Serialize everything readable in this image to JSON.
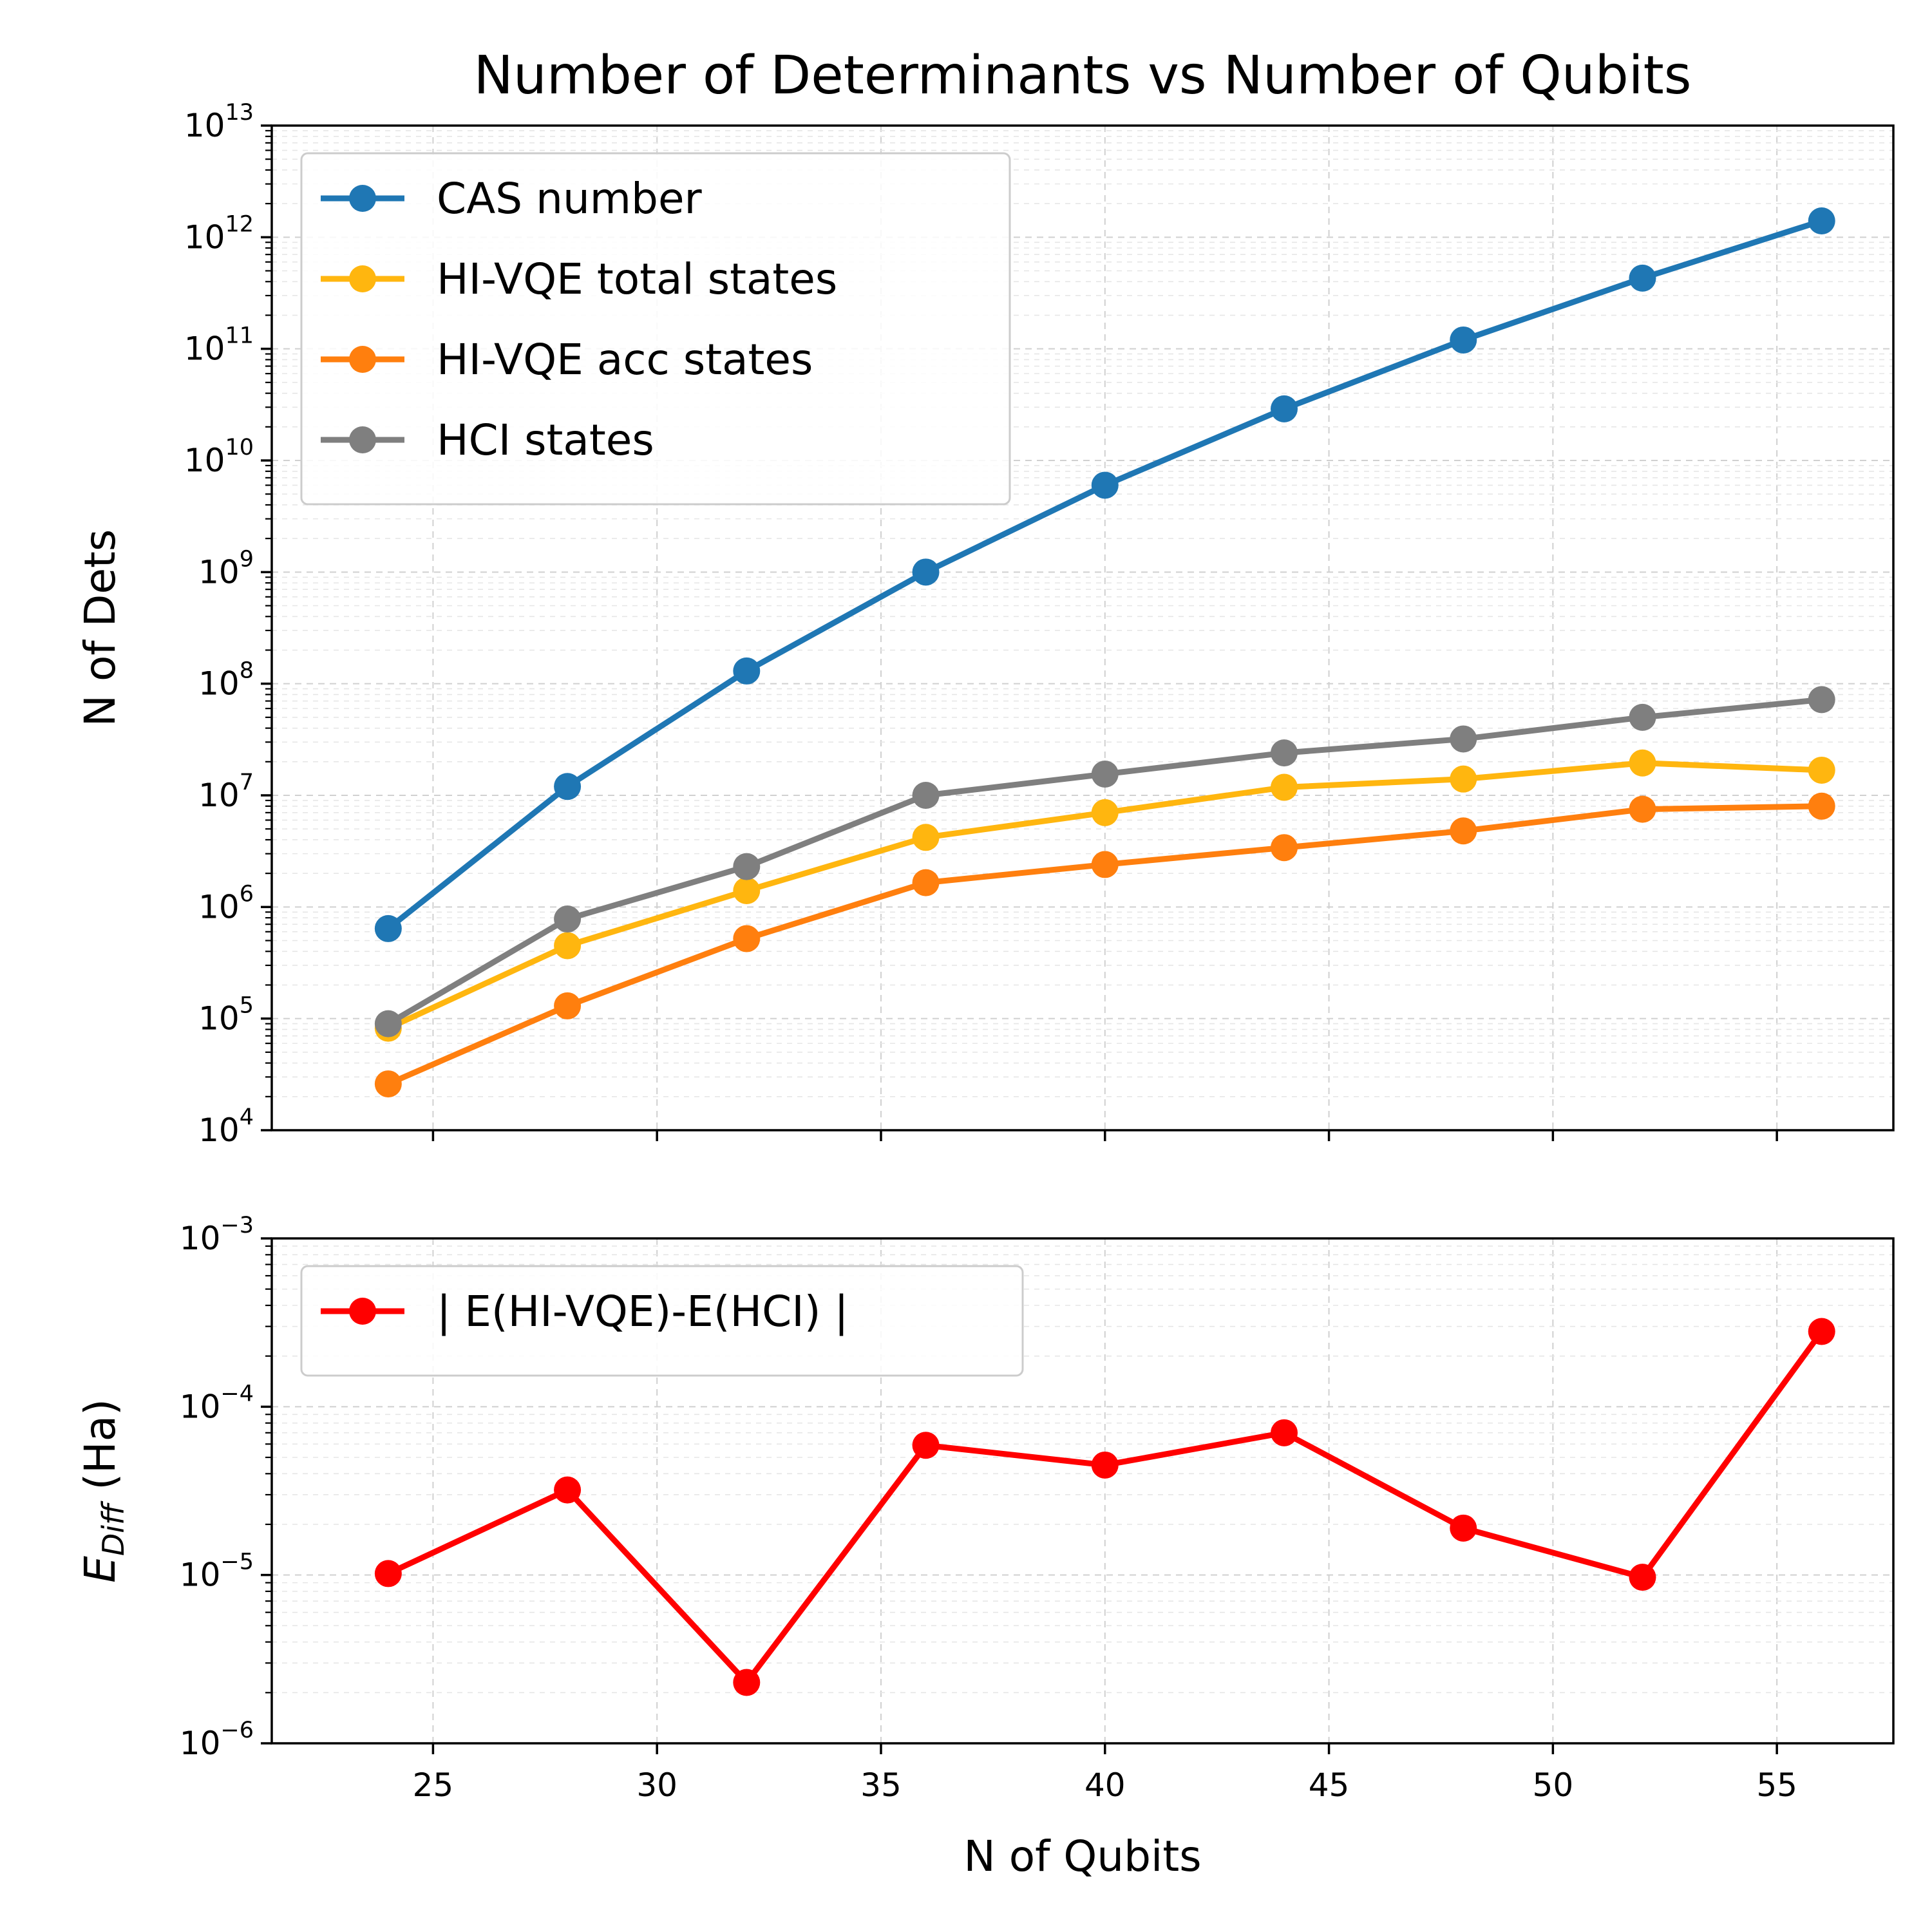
{
  "chart_data": [
    {
      "type": "line",
      "title": "Number of Determinants vs Number of Qubits",
      "xlabel": "",
      "ylabel": "N of Dets",
      "yscale": "log",
      "ylim": [
        10000,
        10000000000000
      ],
      "y_tick_labels": [
        {
          "base": "10",
          "exp": "4"
        },
        {
          "base": "10",
          "exp": "5"
        },
        {
          "base": "10",
          "exp": "6"
        },
        {
          "base": "10",
          "exp": "7"
        },
        {
          "base": "10",
          "exp": "8"
        },
        {
          "base": "10",
          "exp": "9"
        },
        {
          "base": "10",
          "exp": "10"
        },
        {
          "base": "10",
          "exp": "11"
        },
        {
          "base": "10",
          "exp": "12"
        },
        {
          "base": "10",
          "exp": "13"
        }
      ],
      "xlim": [
        21.4,
        57.6
      ],
      "x": [
        24,
        28,
        32,
        36,
        40,
        44,
        48,
        52,
        56
      ],
      "legend_position": "upper-left",
      "grid": true,
      "series": [
        {
          "name": "CAS number",
          "color": "#1f77b4",
          "values": [
            640000,
            12000000,
            130000000,
            1000000000,
            6000000000,
            29000000000,
            120000000000,
            430000000000,
            1400000000000
          ]
        },
        {
          "name": "HI-VQE total states",
          "color": "#ffb60f",
          "values": [
            82000,
            450000,
            1400000,
            4200000,
            7000000,
            11800000,
            14000000,
            19500000,
            16800000
          ]
        },
        {
          "name": "HI-VQE acc states",
          "color": "#ff7f0e",
          "values": [
            26000,
            130000,
            520000,
            1650000,
            2400000,
            3400000,
            4800000,
            7500000,
            8000000
          ]
        },
        {
          "name": "HCI states",
          "color": "#7f7f7f",
          "values": [
            90000,
            780000,
            2300000,
            10000000,
            15500000,
            24000000,
            32000000,
            50000000,
            72000000
          ]
        }
      ]
    },
    {
      "type": "line",
      "title": "",
      "xlabel": "N of Qubits",
      "ylabel_main": "E",
      "ylabel_sub": "Diff",
      "ylabel_unit": " (Ha)",
      "yscale": "log",
      "ylim": [
        1e-06,
        0.001
      ],
      "y_tick_labels": [
        {
          "base": "10",
          "exp": "−6"
        },
        {
          "base": "10",
          "exp": "−5"
        },
        {
          "base": "10",
          "exp": "−4"
        },
        {
          "base": "10",
          "exp": "−3"
        }
      ],
      "xlim": [
        21.4,
        57.6
      ],
      "x_ticks": [
        25,
        30,
        35,
        40,
        45,
        50,
        55
      ],
      "x_tick_labels": [
        "25",
        "30",
        "35",
        "40",
        "45",
        "50",
        "55"
      ],
      "x": [
        24,
        28,
        32,
        36,
        40,
        44,
        48,
        52,
        56
      ],
      "legend_position": "upper-left",
      "grid": true,
      "series": [
        {
          "name": "| E(HI-VQE)-E(HCI) |",
          "color": "#ff0000",
          "values": [
            1.02e-05,
            3.2e-05,
            2.3e-06,
            5.9e-05,
            4.5e-05,
            7e-05,
            1.9e-05,
            9.7e-06,
            0.00028
          ]
        }
      ]
    }
  ]
}
